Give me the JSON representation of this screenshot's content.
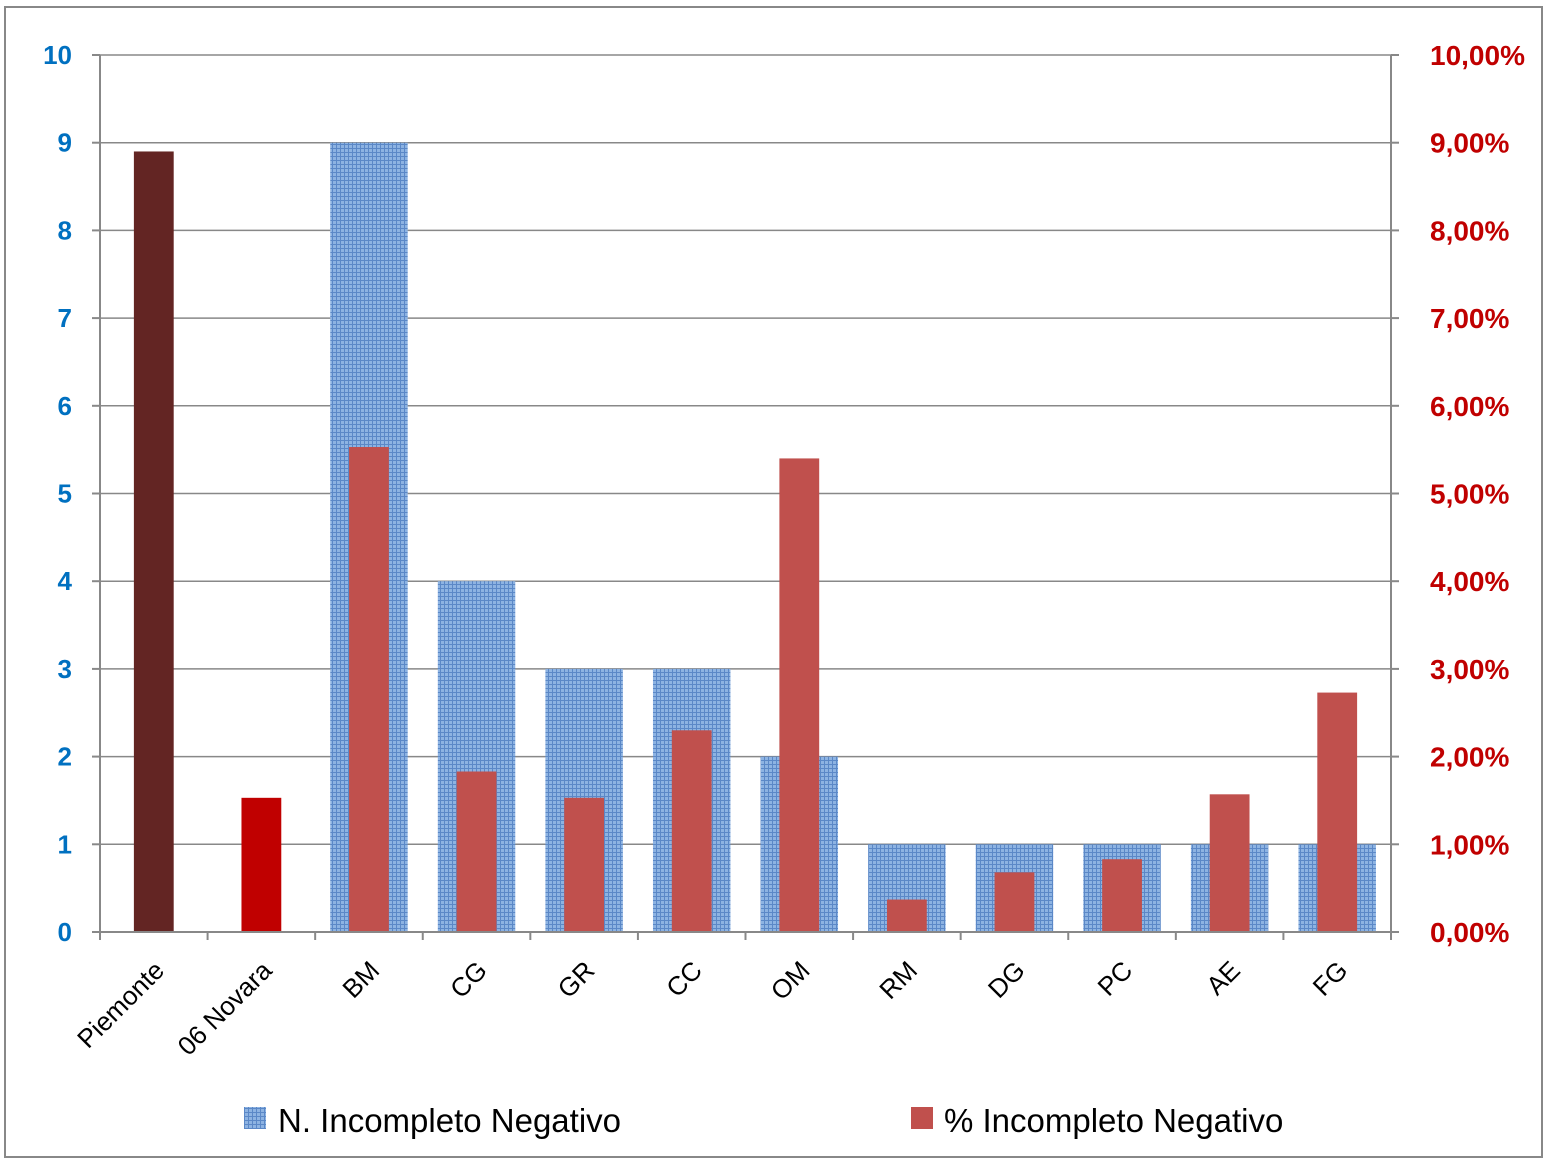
{
  "chart_data": {
    "type": "bar",
    "categories": [
      "Piemonte",
      "06 Novara",
      "BM",
      "CG",
      "GR",
      "CC",
      "OM",
      "RM",
      "DG",
      "PC",
      "AE",
      "FG"
    ],
    "series": [
      {
        "name": "N. Incompleto Negativo",
        "axis": "left",
        "values": [
          null,
          null,
          9,
          4,
          3,
          3,
          2,
          1,
          1,
          1,
          1,
          1
        ],
        "color": "#6F9BD3"
      },
      {
        "name": "% Incompleto Negativo",
        "axis": "right",
        "values": [
          8.9,
          1.53,
          5.53,
          1.83,
          1.53,
          2.3,
          5.4,
          0.37,
          0.68,
          0.83,
          1.57,
          2.73
        ],
        "unit": "%",
        "colors": [
          "#632523",
          "#C00000",
          "#C0504D",
          "#C0504D",
          "#C0504D",
          "#C0504D",
          "#C0504D",
          "#C0504D",
          "#C0504D",
          "#C0504D",
          "#C0504D",
          "#C0504D"
        ]
      }
    ],
    "y_left": {
      "ylim": [
        0,
        10
      ],
      "ticks": [
        "0",
        "1",
        "2",
        "3",
        "4",
        "5",
        "6",
        "7",
        "8",
        "9",
        "10"
      ],
      "color": "#0070C0"
    },
    "y_right": {
      "ylim": [
        0,
        10
      ],
      "ticks": [
        "0,00%",
        "1,00%",
        "2,00%",
        "3,00%",
        "4,00%",
        "5,00%",
        "6,00%",
        "7,00%",
        "8,00%",
        "9,00%",
        "10,00%"
      ],
      "color": "#C00000"
    },
    "grid": true,
    "legend": {
      "position": "bottom",
      "items": [
        {
          "label": "N. Incompleto Negativo",
          "color": "#6F9BD3"
        },
        {
          "label": "% Incompleto Negativo",
          "color": "#C0504D"
        }
      ]
    },
    "title": "",
    "xlabel": "",
    "ylabel": ""
  }
}
